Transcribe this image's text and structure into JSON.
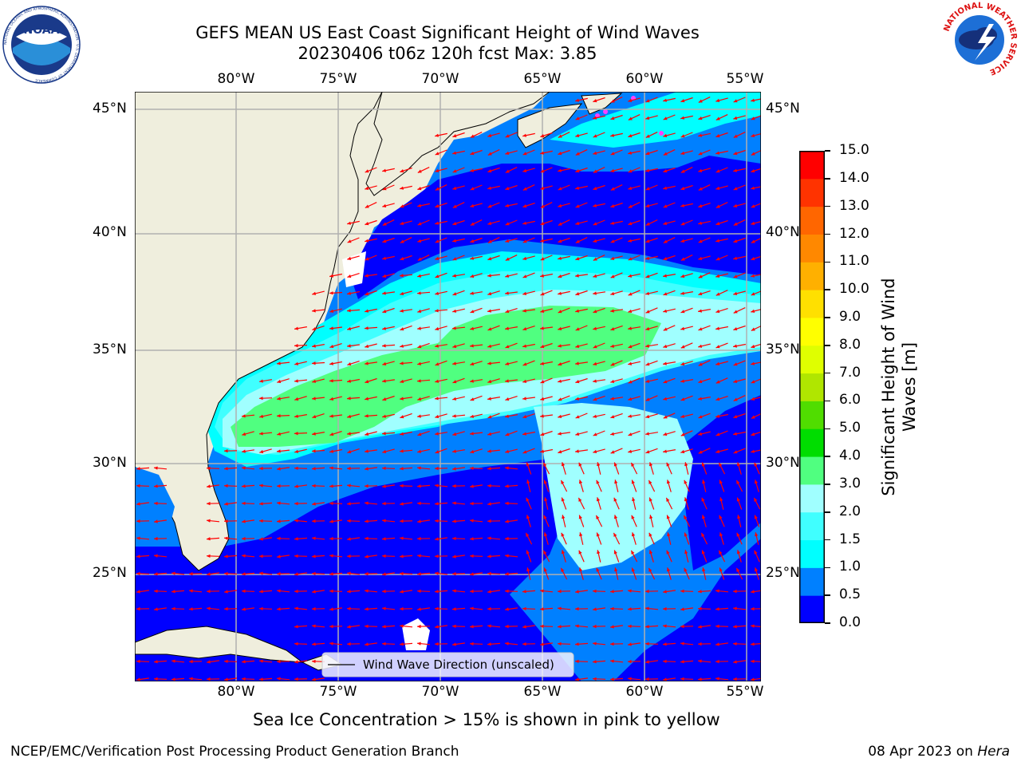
{
  "title": {
    "line1": "GEFS MEAN US East Coast Significant Height of Wind Waves",
    "line2": "20230406 t06z 120h fcst   Max: 3.85"
  },
  "logos": {
    "left": {
      "text": "NOAA",
      "ring": "NATIONAL OCEANIC AND ATMOSPHERIC ADMINISTRATION · U.S. DEPARTMENT OF COMMERCE"
    },
    "right": {
      "ring": "NATIONAL WEATHER SERVICE"
    }
  },
  "map": {
    "lon_labels": [
      "80°W",
      "75°W",
      "70°W",
      "65°W",
      "60°W",
      "55°W"
    ],
    "lat_labels": [
      "45°N",
      "40°N",
      "35°N",
      "30°N",
      "25°N"
    ],
    "legend": "Wind Wave Direction (unscaled)",
    "land_color": "#efeedd",
    "arrow_color": "#ff0000",
    "grid_color": "#b0b0b0"
  },
  "colorbar": {
    "label_line1": "Significant Height of Wind",
    "label_line2": "Waves [m]",
    "ticks": [
      "0.0",
      "0.5",
      "1.0",
      "1.5",
      "2.0",
      "3.0",
      "4.0",
      "5.0",
      "6.0",
      "7.0",
      "8.0",
      "9.0",
      "10.0",
      "11.0",
      "12.0",
      "13.0",
      "14.0",
      "15.0"
    ],
    "colors": [
      "#0000ff",
      "#0080ff",
      "#00ffff",
      "#40ffff",
      "#a0ffff",
      "#50ff80",
      "#00dd00",
      "#50dd00",
      "#b0e600",
      "#dfff00",
      "#ffff00",
      "#ffe000",
      "#ffb000",
      "#ff8800",
      "#ff6600",
      "#ff3300",
      "#ff0000"
    ]
  },
  "caption": "Sea Ice Concentration > 15% is shown in pink to yellow",
  "footer": {
    "left": "NCEP/EMC/Verification Post Processing Product Generation Branch",
    "right_date": "08 Apr 2023 on ",
    "right_host": "Hera"
  }
}
